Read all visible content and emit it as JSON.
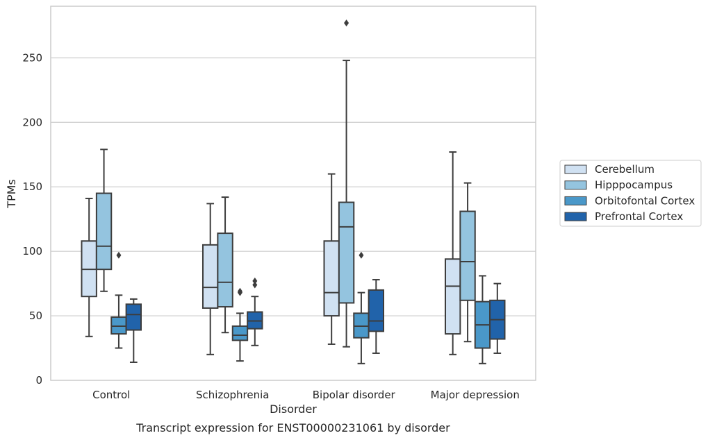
{
  "chart_data": {
    "type": "box",
    "title": "",
    "caption": "Transcript expression for ENST00000231061 by disorder",
    "xlabel": "Disorder",
    "ylabel": "TPMs",
    "ylim": [
      0,
      290
    ],
    "yticks": [
      0,
      50,
      100,
      150,
      200,
      250
    ],
    "grid": "horizontal",
    "legend_position": "right",
    "categories": [
      "Control",
      "Schizophrenia",
      "Bipolar disorder",
      "Major depression"
    ],
    "series": [
      {
        "name": "Cerebellum",
        "color": "#d0e1f2",
        "boxes": [
          {
            "whisker_low": 34,
            "q1": 65,
            "median": 86,
            "q3": 108,
            "whisker_high": 141,
            "outliers": []
          },
          {
            "whisker_low": 20,
            "q1": 56,
            "median": 72,
            "q3": 105,
            "whisker_high": 137,
            "outliers": []
          },
          {
            "whisker_low": 28,
            "q1": 50,
            "median": 68,
            "q3": 108,
            "whisker_high": 160,
            "outliers": []
          },
          {
            "whisker_low": 20,
            "q1": 36,
            "median": 73,
            "q3": 94,
            "whisker_high": 177,
            "outliers": []
          }
        ]
      },
      {
        "name": "Hipppocampus",
        "color": "#94c4df",
        "boxes": [
          {
            "whisker_low": 69,
            "q1": 86,
            "median": 104,
            "q3": 145,
            "whisker_high": 179,
            "outliers": []
          },
          {
            "whisker_low": 37,
            "q1": 57,
            "median": 76,
            "q3": 114,
            "whisker_high": 142,
            "outliers": []
          },
          {
            "whisker_low": 26,
            "q1": 60,
            "median": 119,
            "q3": 138,
            "whisker_high": 248,
            "outliers": [
              277
            ]
          },
          {
            "whisker_low": 30,
            "q1": 62,
            "median": 92,
            "q3": 131,
            "whisker_high": 153,
            "outliers": []
          }
        ]
      },
      {
        "name": "Orbitofontal Cortex",
        "color": "#4a98c9",
        "boxes": [
          {
            "whisker_low": 25,
            "q1": 36,
            "median": 42,
            "q3": 49,
            "whisker_high": 66,
            "outliers": [
              97
            ]
          },
          {
            "whisker_low": 15,
            "q1": 31,
            "median": 35,
            "q3": 42,
            "whisker_high": 52,
            "outliers": [
              68,
              69
            ]
          },
          {
            "whisker_low": 13,
            "q1": 33,
            "median": 42,
            "q3": 52,
            "whisker_high": 68,
            "outliers": [
              97
            ]
          },
          {
            "whisker_low": 13,
            "q1": 25,
            "median": 43,
            "q3": 61,
            "whisker_high": 81,
            "outliers": []
          }
        ]
      },
      {
        "name": "Prefrontal Cortex",
        "color": "#2163aa",
        "boxes": [
          {
            "whisker_low": 14,
            "q1": 39,
            "median": 51,
            "q3": 59,
            "whisker_high": 63,
            "outliers": []
          },
          {
            "whisker_low": 27,
            "q1": 40,
            "median": 46,
            "q3": 53,
            "whisker_high": 65,
            "outliers": [
              74,
              77
            ]
          },
          {
            "whisker_low": 21,
            "q1": 38,
            "median": 46,
            "q3": 70,
            "whisker_high": 78,
            "outliers": []
          },
          {
            "whisker_low": 21,
            "q1": 32,
            "median": 47,
            "q3": 62,
            "whisker_high": 75,
            "outliers": []
          }
        ]
      }
    ]
  }
}
